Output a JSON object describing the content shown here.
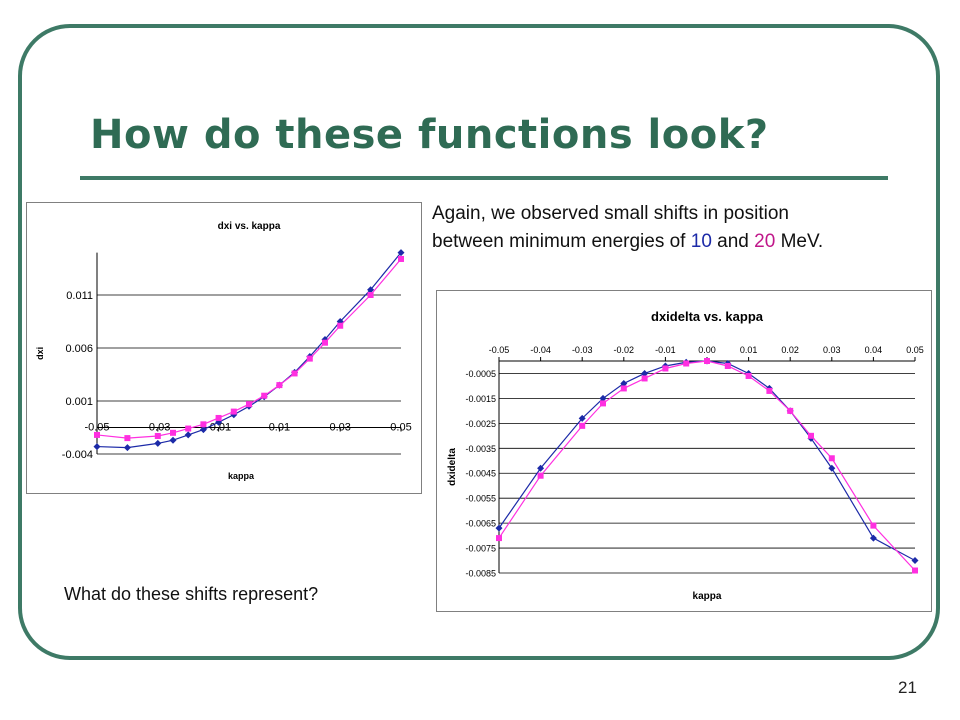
{
  "slide": {
    "title": "How do these functions look?",
    "note": {
      "line1": "Again, we observed small shifts in position",
      "line2_pre": "between minimum energies of ",
      "value1": "10",
      "mid": " and ",
      "value2": "20",
      "suffix": " MeV."
    },
    "question": "What do these shifts represent?",
    "page_number": "21",
    "colors": {
      "frame": "#3e7a66",
      "title": "#2f6b54",
      "series_10": "#1c2aa8",
      "series_20": "#c0178a"
    }
  },
  "chart_data": [
    {
      "type": "line",
      "title": "dxi vs. kappa",
      "xlabel": "kappa",
      "ylabel": "dxi",
      "xlim": [
        -0.05,
        0.05
      ],
      "ylim": [
        -0.004,
        0.015
      ],
      "x_ticks": [
        -0.05,
        -0.03,
        -0.01,
        0.01,
        0.03,
        0.05
      ],
      "x_tick_labels": [
        "-0.05",
        "-0.03",
        "-0.01",
        "0.01",
        "0.03",
        "0.05"
      ],
      "y_ticks": [
        0.011,
        0.006,
        0.001,
        -0.004
      ],
      "y_tick_labels": [
        "0.011",
        "0.006",
        "0.001",
        "-0.004"
      ],
      "x_axis_at": -0.0015,
      "grid": true,
      "x": [
        -0.05,
        -0.04,
        -0.03,
        -0.025,
        -0.02,
        -0.015,
        -0.01,
        -0.005,
        0.0,
        0.005,
        0.01,
        0.015,
        0.02,
        0.025,
        0.03,
        0.04,
        0.05
      ],
      "series": [
        {
          "color": "#1c2aa8",
          "marker": "diamond",
          "values": [
            -0.0033,
            -0.0034,
            -0.003,
            -0.0027,
            -0.0022,
            -0.0017,
            -0.001,
            -0.0003,
            0.0005,
            0.0014,
            0.0025,
            0.0037,
            0.0052,
            0.0068,
            0.0085,
            0.0115,
            0.015
          ]
        },
        {
          "color": "#ff2fe0",
          "marker": "square",
          "values": [
            -0.0022,
            -0.0025,
            -0.0023,
            -0.002,
            -0.0016,
            -0.0012,
            -0.0006,
            0.0,
            0.0007,
            0.0015,
            0.0025,
            0.0036,
            0.005,
            0.0065,
            0.0081,
            0.011,
            0.0144
          ]
        }
      ]
    },
    {
      "type": "line",
      "title": "dxidelta vs. kappa",
      "xlabel": "kappa",
      "ylabel": "dxidelta",
      "xlim": [
        -0.05,
        0.05
      ],
      "ylim": [
        -0.0085,
        0.0
      ],
      "x_axis_position": "top",
      "x_ticks": [
        -0.05,
        -0.04,
        -0.03,
        -0.02,
        -0.01,
        0.0,
        0.01,
        0.02,
        0.03,
        0.04,
        0.05
      ],
      "x_tick_labels": [
        "-0.05",
        "-0.04",
        "-0.03",
        "-0.02",
        "-0.01",
        "0.00",
        "0.01",
        "0.02",
        "0.03",
        "0.04",
        "0.05"
      ],
      "y_ticks": [
        -0.0005,
        -0.0015,
        -0.0025,
        -0.0035,
        -0.0045,
        -0.0055,
        -0.0065,
        -0.0075,
        -0.0085
      ],
      "y_tick_labels": [
        "-0.0005",
        "-0.0015",
        "-0.0025",
        "-0.0035",
        "-0.0045",
        "-0.0055",
        "-0.0065",
        "-0.0075",
        "-0.0085"
      ],
      "grid": true,
      "x": [
        -0.05,
        -0.04,
        -0.03,
        -0.025,
        -0.02,
        -0.015,
        -0.01,
        -0.005,
        0.0,
        0.005,
        0.01,
        0.015,
        0.02,
        0.025,
        0.03,
        0.04,
        0.05
      ],
      "series": [
        {
          "color": "#1c2aa8",
          "marker": "diamond",
          "values": [
            -0.0067,
            -0.0043,
            -0.0023,
            -0.0015,
            -0.0009,
            -0.0005,
            -0.0002,
            -5e-05,
            0.0,
            -0.0001,
            -0.0005,
            -0.0011,
            -0.002,
            -0.0031,
            -0.0043,
            -0.0071,
            -0.008
          ]
        },
        {
          "color": "#ff2fe0",
          "marker": "square",
          "values": [
            -0.0071,
            -0.0046,
            -0.0026,
            -0.0017,
            -0.0011,
            -0.0007,
            -0.0003,
            -0.0001,
            0.0,
            -0.0002,
            -0.0006,
            -0.0012,
            -0.002,
            -0.003,
            -0.0039,
            -0.0066,
            -0.0084
          ]
        }
      ]
    }
  ]
}
